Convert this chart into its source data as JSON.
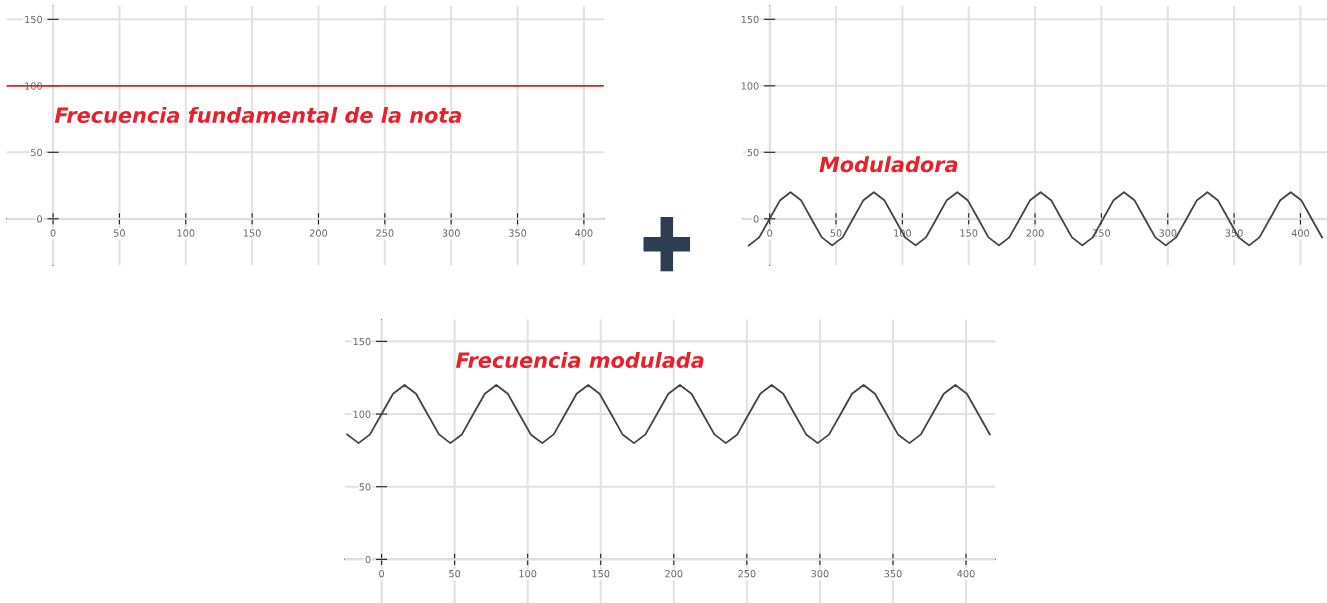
{
  "chart_data": [
    {
      "type": "line",
      "x": [
        -35,
        415
      ],
      "series": [
        {
          "name": "Frecuencia fundamental de la nota",
          "color": "#e8202a",
          "values": [
            100,
            100
          ]
        }
      ],
      "xlim": [
        -35,
        415
      ],
      "ylim": [
        -35,
        160
      ],
      "xticks": [
        0,
        50,
        100,
        150,
        200,
        250,
        300,
        350,
        400
      ],
      "yticks": [
        0,
        50,
        100,
        150
      ],
      "grid": true,
      "legend": false
    },
    {
      "type": "line",
      "x": [
        -15.7,
        -7.9,
        0,
        7.9,
        15.7,
        23.6,
        31.4,
        39.3,
        47.1,
        55.0,
        62.8,
        70.7,
        78.5,
        86.4,
        94.2,
        102.1,
        110.0,
        117.8,
        125.7,
        133.5,
        141.4,
        149.2,
        157.1,
        164.9,
        172.8,
        180.6,
        188.5,
        196.3,
        204.2,
        212.1,
        219.9,
        227.8,
        235.6,
        243.5,
        251.3,
        259.2,
        267.0,
        274.9,
        282.7,
        290.6,
        298.5,
        306.3,
        314.2,
        322.0,
        329.9,
        337.7,
        345.6,
        353.4,
        361.3,
        369.1,
        377.0,
        384.8,
        392.7,
        400.6,
        408.4,
        416.3
      ],
      "series": [
        {
          "name": "Moduladora",
          "color": "#444444",
          "values": [
            -20,
            -14,
            0,
            14,
            20,
            14,
            0,
            -14,
            -20,
            -14,
            0,
            14,
            20,
            14,
            0,
            -14,
            -20,
            -14,
            0,
            14,
            20,
            14,
            0,
            -14,
            -20,
            -14,
            0,
            14,
            20,
            14,
            0,
            -14,
            -20,
            -14,
            0,
            14,
            20,
            14,
            0,
            -14,
            -20,
            -14,
            0,
            14,
            20,
            14,
            0,
            -14,
            -20,
            -14,
            0,
            14,
            20,
            14,
            0,
            -14
          ]
        }
      ],
      "xlim": [
        -20,
        420
      ],
      "ylim": [
        -35,
        160
      ],
      "xticks": [
        0,
        50,
        100,
        150,
        200,
        250,
        300,
        350,
        400
      ],
      "yticks": [
        0,
        50,
        100,
        150
      ],
      "grid": true,
      "legend": false
    },
    {
      "type": "line",
      "x": [
        -23.6,
        -15.7,
        -7.9,
        0,
        7.9,
        15.7,
        23.6,
        31.4,
        39.3,
        47.1,
        55.0,
        62.8,
        70.7,
        78.5,
        86.4,
        94.2,
        102.1,
        110.0,
        117.8,
        125.7,
        133.5,
        141.4,
        149.2,
        157.1,
        164.9,
        172.8,
        180.6,
        188.5,
        196.3,
        204.2,
        212.1,
        219.9,
        227.8,
        235.6,
        243.5,
        251.3,
        259.2,
        267.0,
        274.9,
        282.7,
        290.6,
        298.5,
        306.3,
        314.2,
        322.0,
        329.9,
        337.7,
        345.6,
        353.4,
        361.3,
        369.1,
        377.0,
        384.8,
        392.7,
        400.6,
        408.4,
        416.3
      ],
      "series": [
        {
          "name": "Frecuencia modulada",
          "color": "#444444",
          "values": [
            86,
            80,
            86,
            100,
            114,
            120,
            114,
            100,
            86,
            80,
            86,
            100,
            114,
            120,
            114,
            100,
            86,
            80,
            86,
            100,
            114,
            120,
            114,
            100,
            86,
            80,
            86,
            100,
            114,
            120,
            114,
            100,
            86,
            80,
            86,
            100,
            114,
            120,
            114,
            100,
            86,
            80,
            86,
            100,
            114,
            120,
            114,
            100,
            86,
            80,
            86,
            100,
            114,
            120,
            114,
            100,
            86
          ]
        }
      ],
      "xlim": [
        -25,
        420
      ],
      "ylim": [
        -30,
        165
      ],
      "xticks": [
        0,
        50,
        100,
        150,
        200,
        250,
        300,
        350,
        400
      ],
      "yticks": [
        0,
        50,
        100,
        150
      ],
      "grid": true,
      "legend": false
    }
  ]
}
